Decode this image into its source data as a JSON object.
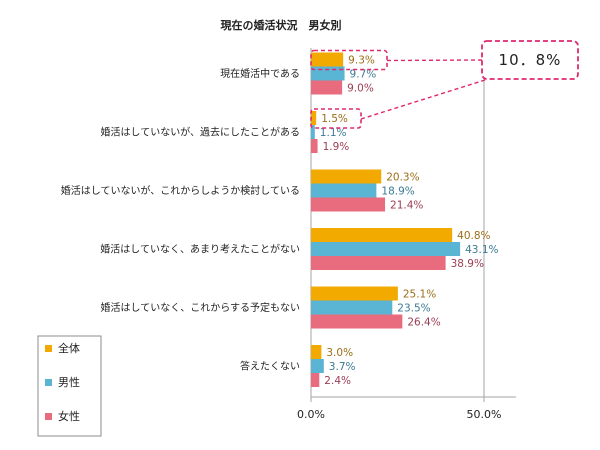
{
  "chart_data": {
    "type": "bar",
    "orientation": "horizontal",
    "title": "現在の婚活状況　男女別",
    "categories": [
      "現在婚活中である",
      "婚活はしていないが、過去にしたことがある",
      "婚活はしていないが、これからしようか検討している",
      "婚活はしていなく、あまり考えたことがない",
      "婚活はしていなく、これからする予定もない",
      "答えたくない"
    ],
    "series": [
      {
        "name": "全体",
        "color": "#f2a900",
        "label_color": "#9b6f18",
        "values": [
          9.3,
          1.5,
          20.3,
          40.8,
          25.1,
          3.0
        ]
      },
      {
        "name": "男性",
        "color": "#5ab4d3",
        "label_color": "#3b7a93",
        "values": [
          9.7,
          1.1,
          18.9,
          43.1,
          23.5,
          3.7
        ]
      },
      {
        "name": "女性",
        "color": "#e86b7e",
        "label_color": "#9b3e52",
        "values": [
          9.0,
          1.9,
          21.4,
          38.9,
          26.4,
          2.4
        ]
      }
    ],
    "value_suffix": "%",
    "xlim": [
      0,
      60
    ],
    "xticks": [
      0,
      50
    ],
    "xtick_labels": [
      "0.0%",
      "50.0%"
    ],
    "legend_position": "bottom-left",
    "annotation": {
      "text": "10．8%",
      "refers_to": [
        "現在婚活中である/全体",
        "婚活はしていないが、過去にしたことがある/全体"
      ]
    },
    "colors": {
      "callout": "#e0286e",
      "axis": "#a6a6a6",
      "gridline": "#a6a6a6"
    }
  }
}
